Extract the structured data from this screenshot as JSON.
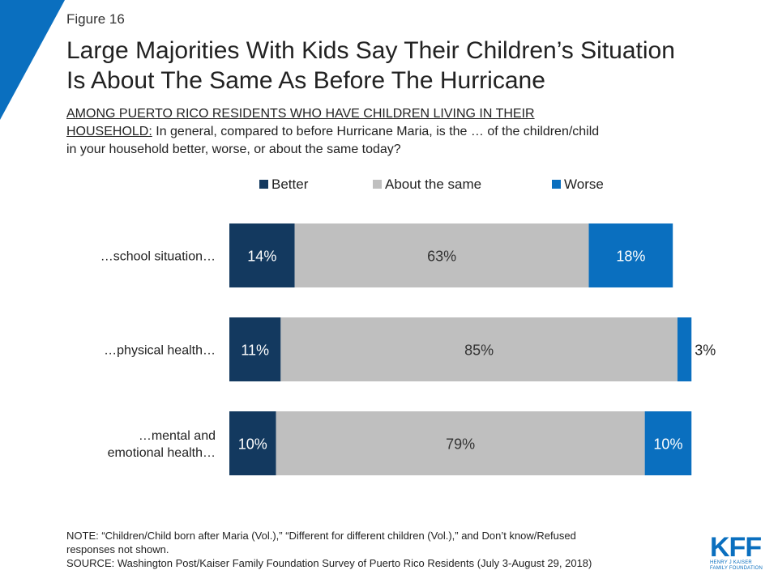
{
  "figure_label": "Figure 16",
  "title_lines": [
    "Large Majorities With Kids Say Their Children’s Situation",
    "Is About The Same As Before The Hurricane"
  ],
  "subtitle": {
    "underlined": [
      "AMONG PUERTO RICO RESIDENTS WHO HAVE CHILDREN LIVING IN THEIR",
      "HOUSEHOLD:"
    ],
    "rest_line2": " In general, compared to before Hurricane Maria, is the … of the children/child",
    "line3": "in your household better, worse, or about the same today?"
  },
  "colors": {
    "better": "#13395f",
    "same": "#bfbfbf",
    "worse": "#0a6fbf",
    "accent": "#0a6fbf"
  },
  "chart_data": {
    "type": "bar",
    "orientation": "horizontal-stacked",
    "categories": [
      "…school situation…",
      "…physical health…",
      "…mental and emotional health…"
    ],
    "category_lines": [
      [
        "…school situation…"
      ],
      [
        "…physical health…"
      ],
      [
        "…mental and",
        "emotional health…"
      ]
    ],
    "series": [
      {
        "name": "Better",
        "values": [
          14,
          11,
          10
        ],
        "color": "#13395f"
      },
      {
        "name": "About the same",
        "values": [
          63,
          85,
          79
        ],
        "color": "#bfbfbf"
      },
      {
        "name": "Worse",
        "values": [
          18,
          3,
          10
        ],
        "color": "#0a6fbf"
      }
    ],
    "value_suffix": "%",
    "legend_position": "top",
    "grid": false
  },
  "note": {
    "line1": "NOTE: “Children/Child born after Maria (Vol.),” “Different for different children (Vol.),” and Don’t know/Refused",
    "line2": "responses not shown.",
    "line3": "SOURCE: Washington Post/Kaiser Family Foundation Survey of Puerto Rico Residents (July 3-August 29, 2018)"
  },
  "logo": {
    "mark": "KFF",
    "line1": "HENRY J KAISER",
    "line2": "FAMILY FOUNDATION"
  }
}
